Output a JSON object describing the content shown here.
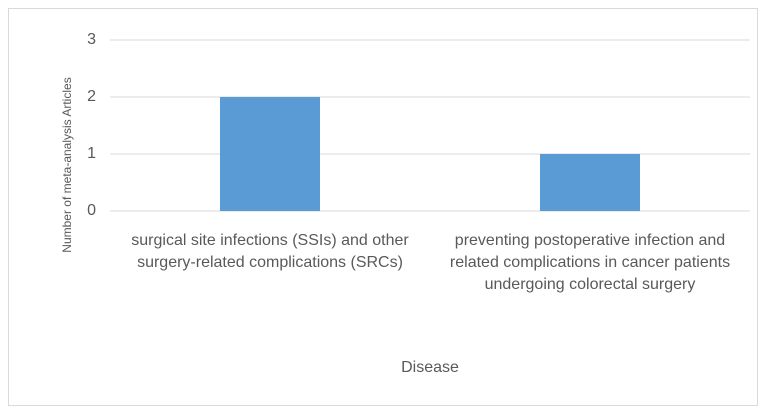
{
  "chart_data": {
    "type": "bar",
    "categories": [
      "surgical site infections (SSIs) and other surgery-related complications (SRCs)",
      "preventing postoperative infection and related complications in cancer patients undergoing colorectal surgery"
    ],
    "values": [
      2,
      1
    ],
    "color": "#5b9bd5",
    "ylim": [
      0,
      3
    ],
    "yticks": [
      0,
      1,
      2,
      3
    ],
    "grid": true,
    "x_label": "Disease",
    "y_label": "Number of meta-analysis Articles"
  }
}
